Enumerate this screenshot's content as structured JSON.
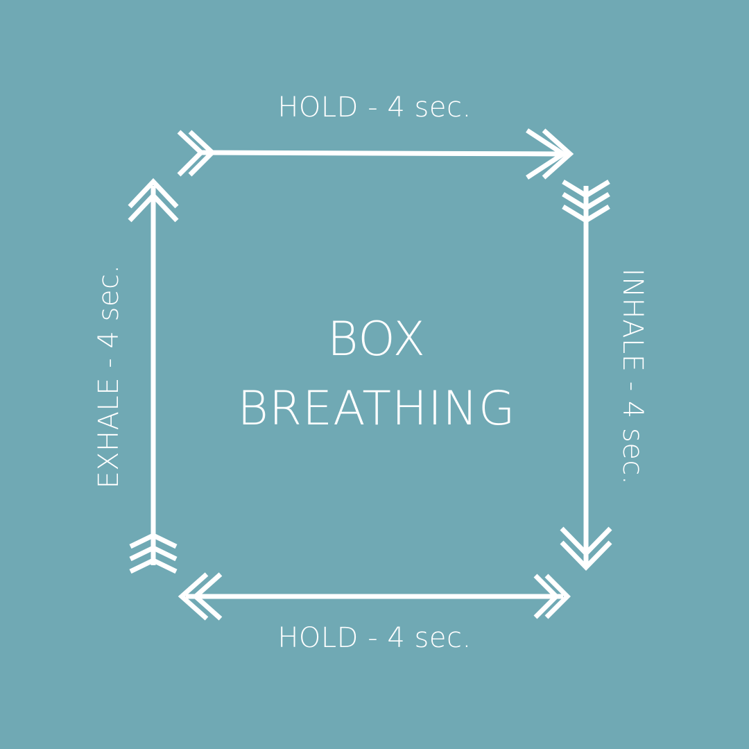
{
  "background_color": "#70a9b4",
  "foreground_color": "#ffffff",
  "title": {
    "line1": "BOX",
    "line2": "BREATHING"
  },
  "steps": {
    "top": "HOLD - 4 sec.",
    "right": "INHALE - 4 sec.",
    "bottom": "HOLD - 4 sec.",
    "left": "EXHALE - 4 sec."
  },
  "icons": {
    "top": "arrow-right-icon",
    "right": "arrow-down-icon",
    "bottom": "arrow-left-icon",
    "left": "arrow-up-icon"
  }
}
